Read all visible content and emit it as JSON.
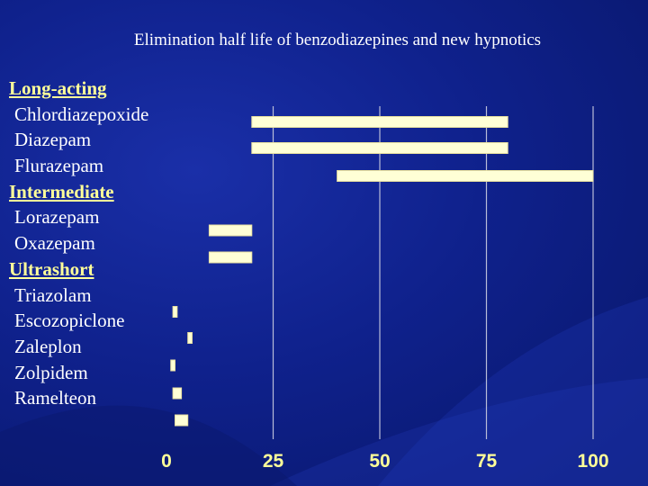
{
  "title": "Elimination half life of benzodiazepines and new hypnotics",
  "row_labels": [
    {
      "text": "Long-acting",
      "kind": "header"
    },
    {
      "text": "Chlordiazepoxide",
      "kind": "drug"
    },
    {
      "text": "Diazepam",
      "kind": "drug"
    },
    {
      "text": "Flurazepam",
      "kind": "drug"
    },
    {
      "text": "Intermediate",
      "kind": "header"
    },
    {
      "text": "Lorazepam",
      "kind": "drug"
    },
    {
      "text": "Oxazepam",
      "kind": "drug"
    },
    {
      "text": "Ultrashort",
      "kind": "header"
    },
    {
      "text": "Triazolam",
      "kind": "drug"
    },
    {
      "text": "Escozopiclone",
      "kind": "drug"
    },
    {
      "text": "Zaleplon",
      "kind": "drug"
    },
    {
      "text": "Zolpidem",
      "kind": "drug"
    },
    {
      "text": "Ramelteon",
      "kind": "drug"
    }
  ],
  "colors": {
    "background": "#0f218c",
    "bar_fill": "#ffffd6",
    "bar_stroke": "#e8e0a0",
    "gridline": "#b8bcd8",
    "header_text": "#ffff99",
    "tick_text": "#ffff99",
    "text": "#ffffff"
  },
  "chart_data": {
    "type": "bar",
    "orientation": "horizontal",
    "title": "Elimination half life of benzodiazepines and new hypnotics",
    "xlim": [
      0,
      100
    ],
    "xticks": [
      0,
      25,
      50,
      75,
      100
    ],
    "grid": true,
    "bars": [
      {
        "start": 20,
        "end": 80
      },
      {
        "start": 20,
        "end": 80
      },
      {
        "start": 40,
        "end": 100
      },
      {
        "start": 10,
        "end": 20
      },
      {
        "start": 10,
        "end": 20
      },
      {
        "start": 1.5,
        "end": 2.5
      },
      {
        "start": 5,
        "end": 6
      },
      {
        "start": 1,
        "end": 2
      },
      {
        "start": 1.5,
        "end": 3.5
      },
      {
        "start": 2,
        "end": 5
      }
    ]
  }
}
